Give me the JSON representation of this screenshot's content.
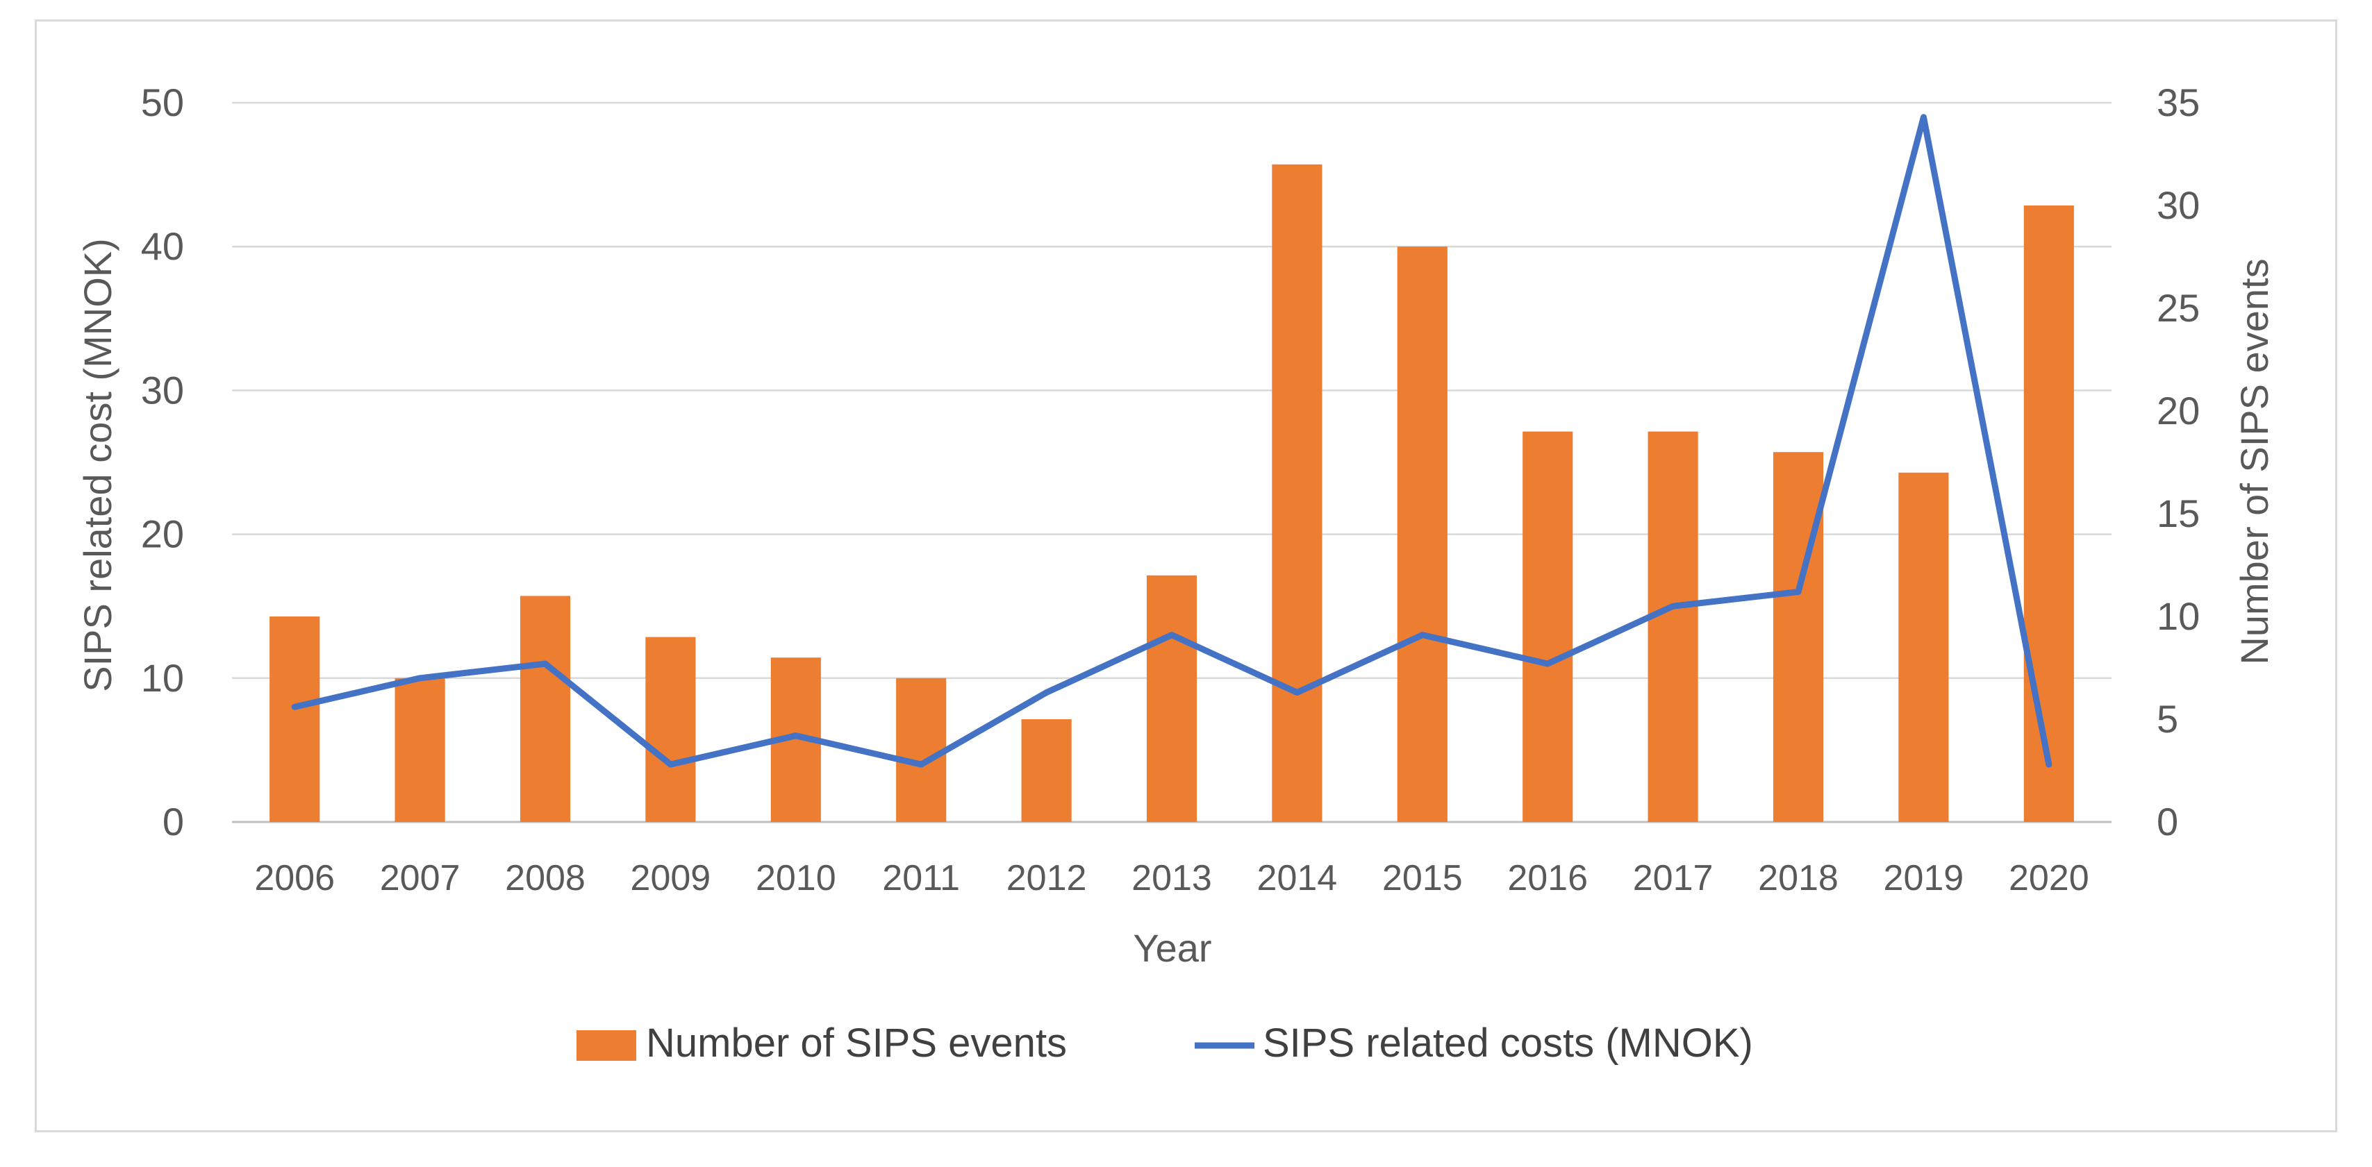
{
  "chart_data": {
    "type": "bar+line",
    "categories": [
      "2006",
      "2007",
      "2008",
      "2009",
      "2010",
      "2011",
      "2012",
      "2013",
      "2014",
      "2015",
      "2016",
      "2017",
      "2018",
      "2019",
      "2020"
    ],
    "series": [
      {
        "name": "Number of SIPS events",
        "type": "bar",
        "axis": "right",
        "color": "#ED7D31",
        "values": [
          10,
          7,
          11,
          9,
          8,
          7,
          5,
          12,
          32,
          28,
          19,
          19,
          18,
          17,
          30
        ]
      },
      {
        "name": "SIPS related costs (MNOK)",
        "type": "line",
        "axis": "left",
        "color": "#4472C4",
        "values": [
          8,
          10,
          11,
          4,
          6,
          4,
          9,
          13,
          9,
          13,
          11,
          15,
          16,
          49,
          4
        ]
      }
    ],
    "xlabel": "Year",
    "ylabel": "SIPS related cost (MNOK)",
    "y2label": "Number of SIPS events",
    "ylim": [
      0,
      50
    ],
    "y2lim": [
      0,
      35
    ],
    "yticks": [
      "0",
      "10",
      "20",
      "30",
      "40",
      "50"
    ],
    "y2ticks": [
      "0",
      "5",
      "10",
      "15",
      "20",
      "25",
      "30",
      "35"
    ],
    "grid": true,
    "legend": "bottom-center"
  }
}
